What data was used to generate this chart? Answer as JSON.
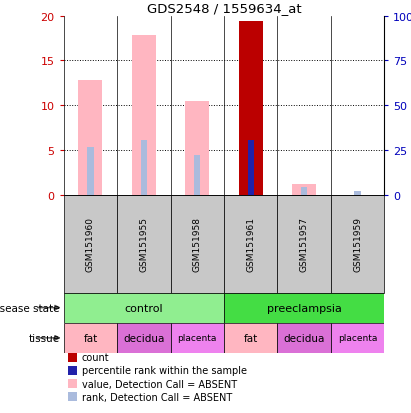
{
  "title": "GDS2548 / 1559634_at",
  "samples": [
    "GSM151960",
    "GSM151955",
    "GSM151958",
    "GSM151961",
    "GSM151957",
    "GSM151959"
  ],
  "absent_value_bars": [
    12.8,
    17.8,
    10.5,
    0,
    1.2,
    0
  ],
  "absent_rank_bars": [
    5.4,
    6.1,
    4.5,
    0,
    0.9,
    0.5
  ],
  "count_bars": [
    0,
    0,
    0,
    19.4,
    0,
    0
  ],
  "rank_bars": [
    0,
    0,
    0,
    6.1,
    0,
    0
  ],
  "ylim": [
    0,
    20
  ],
  "y_ticks_left": [
    0,
    5,
    10,
    15,
    20
  ],
  "y_labels_left": [
    "0",
    "5",
    "10",
    "15",
    "20"
  ],
  "y_ticks_right": [
    0,
    5,
    10,
    15,
    20
  ],
  "y_labels_right": [
    "0",
    "25",
    "50",
    "75",
    "100%"
  ],
  "disease_spans": [
    {
      "label": "control",
      "start": 0,
      "end": 3,
      "color": "#90EE90"
    },
    {
      "label": "preeclampsia",
      "start": 3,
      "end": 6,
      "color": "#44DD44"
    }
  ],
  "tissue_spans": [
    {
      "label": "fat",
      "start": 0,
      "end": 1,
      "color": "#FFB6C1"
    },
    {
      "label": "decidua",
      "start": 1,
      "end": 2,
      "color": "#DA70D6"
    },
    {
      "label": "placenta",
      "start": 2,
      "end": 3,
      "color": "#EE82EE"
    },
    {
      "label": "fat",
      "start": 3,
      "end": 4,
      "color": "#FFB6C1"
    },
    {
      "label": "decidua",
      "start": 4,
      "end": 5,
      "color": "#DA70D6"
    },
    {
      "label": "placenta",
      "start": 5,
      "end": 6,
      "color": "#EE82EE"
    }
  ],
  "bar_width": 0.45,
  "narrow_bar_width": 0.12,
  "color_absent_value": "#FFB6C1",
  "color_absent_rank": "#AABBDD",
  "color_count": "#BB0000",
  "color_rank": "#2222AA",
  "sample_bg_color": "#C8C8C8",
  "left_axis_color": "#CC0000",
  "right_axis_color": "#0000BB",
  "legend_items": [
    {
      "label": "count",
      "color": "#BB0000"
    },
    {
      "label": "percentile rank within the sample",
      "color": "#2222AA"
    },
    {
      "label": "value, Detection Call = ABSENT",
      "color": "#FFB6C1"
    },
    {
      "label": "rank, Detection Call = ABSENT",
      "color": "#AABBDD"
    }
  ]
}
